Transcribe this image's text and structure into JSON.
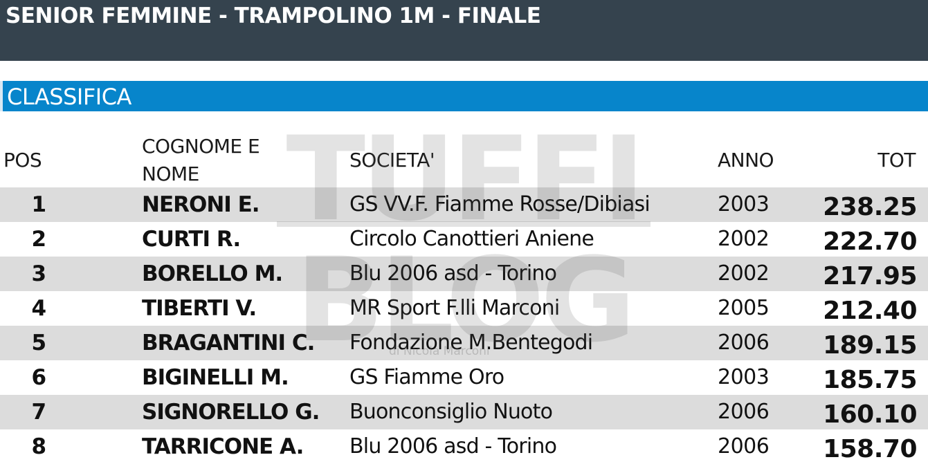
{
  "header": {
    "title": "SENIOR FEMMINE - TRAMPOLINO 1M - FINALE"
  },
  "section": {
    "title": "CLASSIFICA"
  },
  "watermark": {
    "line1": "TUFFI",
    "line2": "BLOG",
    "credit": "di Nicola Marconi"
  },
  "table": {
    "columns": {
      "pos": "POS",
      "name_line1": "COGNOME E",
      "name_line2": "NOME",
      "societa": "SOCIETA'",
      "anno": "ANNO",
      "tot": "TOT"
    },
    "rows": [
      {
        "pos": "1",
        "name": "NERONI E.",
        "societa": "GS VV.F. Fiamme Rosse/Dibiasi",
        "anno": "2003",
        "tot": "238.25"
      },
      {
        "pos": "2",
        "name": "CURTI R.",
        "societa": "Circolo Canottieri Aniene",
        "anno": "2002",
        "tot": "222.70"
      },
      {
        "pos": "3",
        "name": "BORELLO M.",
        "societa": "Blu 2006 asd - Torino",
        "anno": "2002",
        "tot": "217.95"
      },
      {
        "pos": "4",
        "name": "TIBERTI V.",
        "societa": "MR Sport F.lli Marconi",
        "anno": "2005",
        "tot": "212.40"
      },
      {
        "pos": "5",
        "name": "BRAGANTINI C.",
        "societa": "Fondazione M.Bentegodi",
        "anno": "2006",
        "tot": "189.15"
      },
      {
        "pos": "6",
        "name": "BIGINELLI M.",
        "societa": "GS Fiamme Oro",
        "anno": "2003",
        "tot": "185.75"
      },
      {
        "pos": "7",
        "name": "SIGNORELLO G.",
        "societa": "Buonconsiglio Nuoto",
        "anno": "2006",
        "tot": "160.10"
      },
      {
        "pos": "8",
        "name": "TARRICONE A.",
        "societa": "Blu 2006 asd - Torino",
        "anno": "2006",
        "tot": "158.70"
      }
    ]
  },
  "colors": {
    "header_bg": "#35434e",
    "section_bg": "#0785cb",
    "row_shade": "#dcdcdc"
  }
}
